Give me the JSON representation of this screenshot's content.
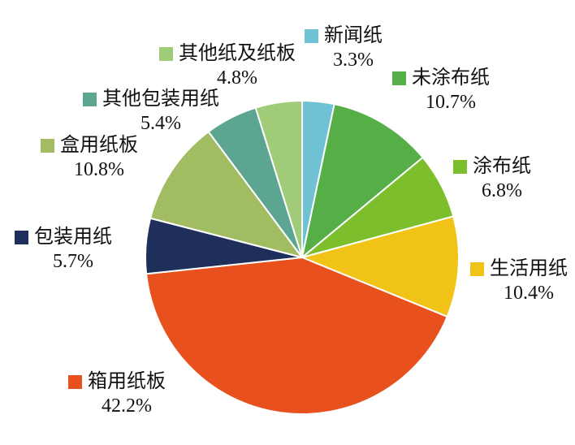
{
  "chart_data": {
    "type": "pie",
    "title": "",
    "start_angle_deg": 0,
    "direction": "clockwise",
    "grid": false,
    "legend_position": "labels-around-pie",
    "slice_separator_color": "#ffffff",
    "background_color": "#ffffff",
    "text_color": "#111111",
    "slices": [
      {
        "label": "新闻纸",
        "value": 3.3,
        "display": "3.3%",
        "color": "#6fc2d4"
      },
      {
        "label": "未涂布纸",
        "value": 10.7,
        "display": "10.7%",
        "color": "#55ae46"
      },
      {
        "label": "涂布纸",
        "value": 6.8,
        "display": "6.8%",
        "color": "#7cbe2c"
      },
      {
        "label": "生活用纸",
        "value": 10.4,
        "display": "10.4%",
        "color": "#f1c316"
      },
      {
        "label": "箱用纸板",
        "value": 42.2,
        "display": "42.2%",
        "color": "#e8511d"
      },
      {
        "label": "包装用纸",
        "value": 5.7,
        "display": "5.7%",
        "color": "#1f2f5b"
      },
      {
        "label": "盒用纸板",
        "value": 10.8,
        "display": "10.8%",
        "color": "#a2bc62"
      },
      {
        "label": "其他包装用纸",
        "value": 5.4,
        "display": "5.4%",
        "color": "#5ca591"
      },
      {
        "label": "其他纸及纸板",
        "value": 4.8,
        "display": "4.8%",
        "color": "#a0cc79"
      }
    ]
  }
}
